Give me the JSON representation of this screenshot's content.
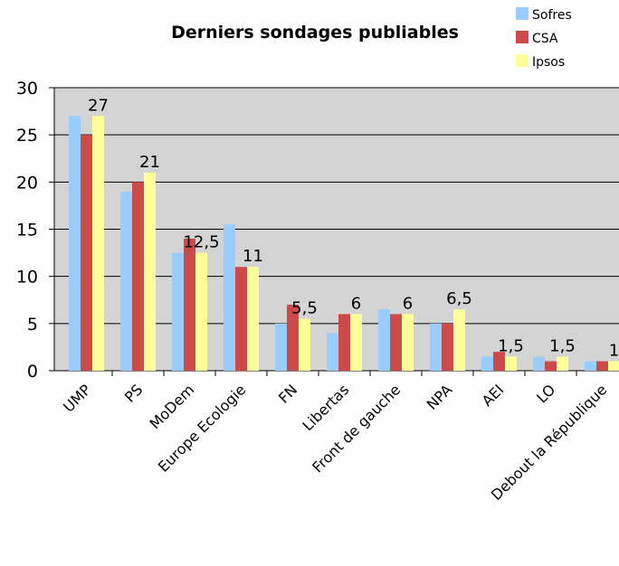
{
  "chart_data": {
    "type": "bar",
    "title": "Derniers sondages publiables",
    "categories": [
      "UMP",
      "PS",
      "MoDem",
      "Europe Ecologie",
      "FN",
      "Libertas",
      "Front de gauche",
      "NPA",
      "AEI",
      "LO",
      "Debout la République"
    ],
    "series": [
      {
        "name": "Sofres",
        "color": "#99ccff",
        "values": [
          27,
          19,
          12.5,
          15.5,
          5,
          4,
          6.5,
          5,
          1.5,
          1.5,
          1
        ]
      },
      {
        "name": "CSA",
        "color": "#cc4a4a",
        "values": [
          25,
          20,
          14,
          11,
          7,
          6,
          6,
          5,
          2,
          1,
          1
        ]
      },
      {
        "name": "Ipsos",
        "color": "#ffff99",
        "values": [
          27,
          21,
          12.5,
          11,
          5.5,
          6,
          6,
          6.5,
          1.5,
          1.5,
          1
        ]
      }
    ],
    "data_labels": [
      "27",
      "21",
      "12,5",
      "11",
      "5,5",
      "6",
      "6",
      "6,5",
      "1,5",
      "1,5",
      "1"
    ],
    "ylim": [
      0,
      30
    ],
    "yticks": [
      "0",
      "5",
      "10",
      "15",
      "20",
      "25",
      "30"
    ],
    "grid": true,
    "plot_background": "#d4d4d4",
    "legend_position": "top-right"
  }
}
